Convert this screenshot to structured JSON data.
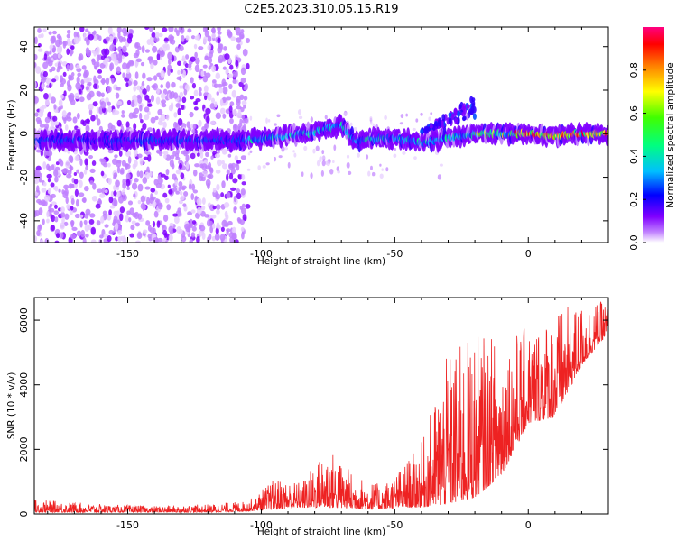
{
  "figure": {
    "title": "C2E5.2023.310.05.15.R19"
  },
  "chart_data": [
    {
      "type": "heatmap",
      "xlabel": "Height of straight line (km)",
      "ylabel": "Frequency (Hz)",
      "xlim": [
        -185,
        30
      ],
      "ylim": [
        -50,
        49
      ],
      "x_ticks": [
        -150,
        -100,
        -50,
        0
      ],
      "y_ticks": [
        -40,
        -20,
        0,
        20,
        40
      ],
      "colorbar": {
        "label": "Normalized spectral amplitude",
        "range": [
          0,
          1
        ],
        "ticks": [
          0.0,
          0.2,
          0.4,
          0.6,
          0.8
        ],
        "colormap": [
          "#ffffff",
          "#a020f0",
          "#0000ff",
          "#00bfff",
          "#00ff80",
          "#80ff00",
          "#ffff00",
          "#ff8000",
          "#ff0000",
          "#ff0080"
        ]
      },
      "ridge_center_hz": [
        [
          -185,
          -3
        ],
        [
          -160,
          -3
        ],
        [
          -140,
          -3
        ],
        [
          -120,
          -3
        ],
        [
          -110,
          -3
        ],
        [
          -100,
          -2.5
        ],
        [
          -90,
          -1
        ],
        [
          -80,
          1
        ],
        [
          -70,
          4
        ],
        [
          -65,
          -3
        ],
        [
          -50,
          -2
        ],
        [
          -40,
          -4
        ],
        [
          -30,
          -2
        ],
        [
          -20,
          0
        ],
        [
          -10,
          0
        ],
        [
          0,
          0
        ],
        [
          10,
          -1
        ],
        [
          20,
          0
        ],
        [
          30,
          0
        ]
      ],
      "background_noise_x_range": [
        -185,
        -105
      ],
      "upper_feature": {
        "x": [
          -40,
          -20
        ],
        "freq_hz": [
          5,
          17
        ]
      }
    },
    {
      "type": "line",
      "xlabel": "Height of straight line (km)",
      "ylabel": "SNR (10 * v/v)",
      "xlim": [
        -185,
        30
      ],
      "ylim": [
        0,
        6700
      ],
      "x_ticks": [
        -150,
        -100,
        -50,
        0
      ],
      "y_ticks": [
        0,
        2000,
        4000,
        6000
      ],
      "line_color": "#ee2222",
      "envelope": [
        {
          "x": -185,
          "min": 50,
          "max": 450
        },
        {
          "x": -160,
          "min": 50,
          "max": 300
        },
        {
          "x": -140,
          "min": 50,
          "max": 250
        },
        {
          "x": -120,
          "min": 50,
          "max": 300
        },
        {
          "x": -105,
          "min": 80,
          "max": 400
        },
        {
          "x": -95,
          "min": 150,
          "max": 1100
        },
        {
          "x": -85,
          "min": 200,
          "max": 1000
        },
        {
          "x": -75,
          "min": 200,
          "max": 2100
        },
        {
          "x": -65,
          "min": 150,
          "max": 1200
        },
        {
          "x": -55,
          "min": 150,
          "max": 900
        },
        {
          "x": -48,
          "min": 200,
          "max": 1400
        },
        {
          "x": -40,
          "min": 200,
          "max": 2200
        },
        {
          "x": -30,
          "min": 300,
          "max": 5000
        },
        {
          "x": -20,
          "min": 500,
          "max": 5600
        },
        {
          "x": -10,
          "min": 1200,
          "max": 5500
        },
        {
          "x": 0,
          "min": 2800,
          "max": 5800
        },
        {
          "x": 10,
          "min": 3000,
          "max": 6300
        },
        {
          "x": 20,
          "min": 4600,
          "max": 6500
        },
        {
          "x": 30,
          "min": 5600,
          "max": 6600
        }
      ]
    }
  ]
}
